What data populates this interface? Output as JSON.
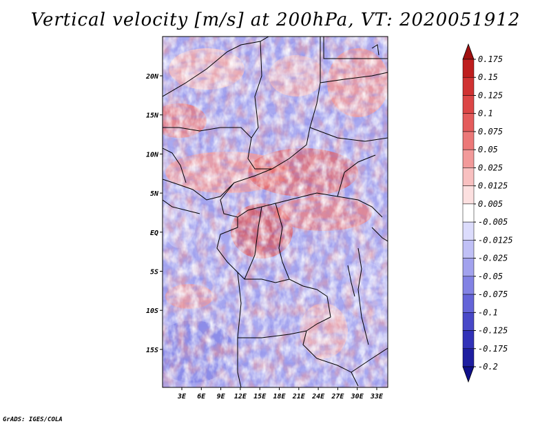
{
  "title": "Vertical velocity [m/s] at 200hPa, VT: 2020051912",
  "credit": "GrADS: IGES/COLA",
  "map": {
    "lat_labels": [
      "20N",
      "15N",
      "10N",
      "5N",
      "EQ",
      "5S",
      "10S",
      "15S"
    ],
    "lon_labels": [
      "3E",
      "6E",
      "9E",
      "12E",
      "15E",
      "18E",
      "21E",
      "24E",
      "27E",
      "30E",
      "33E"
    ]
  },
  "colorbar": {
    "levels": [
      "0.175",
      "0.15",
      "0.125",
      "0.1",
      "0.075",
      "0.05",
      "0.025",
      "0.0125",
      "0.005",
      "-0.005",
      "-0.0125",
      "-0.025",
      "-0.05",
      "-0.075",
      "-0.1",
      "-0.125",
      "-0.175",
      "-0.2"
    ],
    "colors": [
      "#a01010",
      "#be1e1e",
      "#d03232",
      "#dc4646",
      "#e45c5c",
      "#ec7878",
      "#f29a9a",
      "#f8c0c0",
      "#fce0e0",
      "#ffffff",
      "#dcdcfc",
      "#c0c0f6",
      "#a2a2ee",
      "#8282e4",
      "#6464d8",
      "#4848c8",
      "#3232b8",
      "#1e1ea0",
      "#10108a"
    ]
  }
}
